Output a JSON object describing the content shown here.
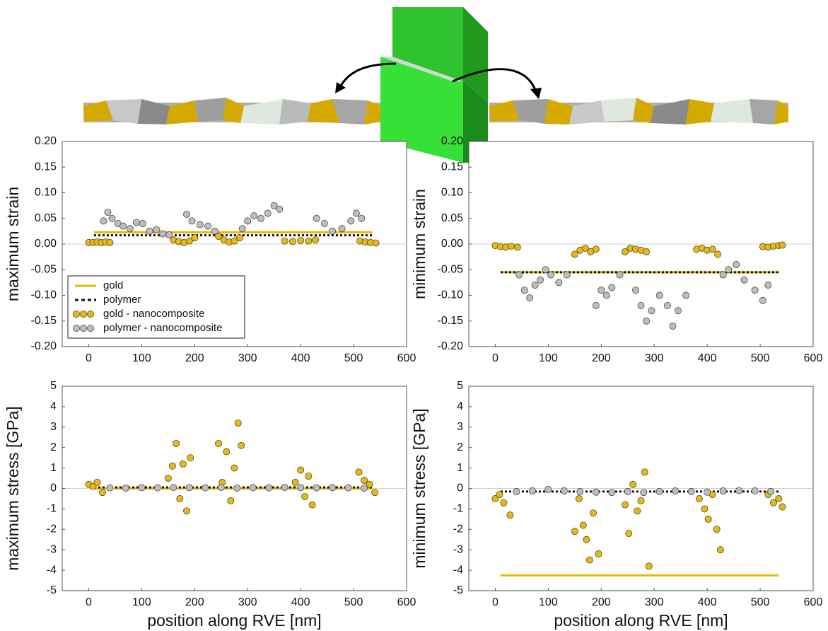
{
  "chart_data": [
    {
      "type": "scatter",
      "ylabel": "maximum strain",
      "xlim": [
        -50,
        600
      ],
      "xticks": [
        0,
        100,
        200,
        300,
        400,
        500,
        600
      ],
      "ylim": [
        -0.2,
        0.2
      ],
      "yticks": [
        {
          "value": -0.2,
          "label": "-0.20"
        },
        {
          "value": -0.15,
          "label": "-0.15"
        },
        {
          "value": -0.1,
          "label": "-0.10"
        },
        {
          "value": -0.05,
          "label": "-0.05"
        },
        {
          "value": 0,
          "label": "0.00"
        },
        {
          "value": 0.05,
          "label": "0.05"
        },
        {
          "value": 0.1,
          "label": "0.10"
        },
        {
          "value": 0.15,
          "label": "0.15"
        },
        {
          "value": 0.2,
          "label": "0.20"
        }
      ],
      "zero_line": true,
      "legend": "lower left",
      "series": [
        {
          "name": "gold",
          "style": "solid",
          "color": "#e6b800",
          "x": [
            10,
            535
          ],
          "values": [
            0.023,
            0.023
          ]
        },
        {
          "name": "polymer",
          "style": "dashed",
          "color": "#111111",
          "x": [
            10,
            535
          ],
          "values": [
            0.017,
            0.017
          ]
        },
        {
          "name": "gold - nanocomposite",
          "style": "markers",
          "color": "#e8b90f",
          "x": [
            0,
            8,
            16,
            24,
            32,
            40,
            160,
            170,
            180,
            190,
            200,
            245,
            255,
            265,
            275,
            285,
            370,
            385,
            400,
            415,
            428,
            512,
            522,
            532,
            542
          ],
          "values": [
            0.003,
            0.003,
            0.004,
            0.003,
            0.004,
            0.003,
            0.008,
            0.005,
            0.003,
            0.006,
            0.012,
            0.015,
            0.008,
            0.004,
            0.006,
            0.012,
            0.006,
            0.005,
            0.007,
            0.006,
            0.008,
            0.006,
            0.004,
            0.003,
            0.002
          ]
        },
        {
          "name": "polymer - nanocomposite",
          "style": "markers",
          "color": "#bdbdbd",
          "x": [
            28,
            36,
            44,
            55,
            65,
            78,
            90,
            102,
            115,
            128,
            140,
            152,
            185,
            195,
            210,
            225,
            238,
            290,
            300,
            312,
            325,
            338,
            350,
            360,
            430,
            445,
            460,
            478,
            495,
            505,
            515
          ],
          "values": [
            0.045,
            0.062,
            0.05,
            0.04,
            0.035,
            0.03,
            0.042,
            0.04,
            0.025,
            0.028,
            0.02,
            0.018,
            0.058,
            0.045,
            0.038,
            0.035,
            0.025,
            0.03,
            0.045,
            0.055,
            0.05,
            0.06,
            0.075,
            0.068,
            0.05,
            0.04,
            0.025,
            0.03,
            0.045,
            0.06,
            0.05
          ]
        }
      ]
    },
    {
      "type": "scatter",
      "ylabel": "minimum strain",
      "xlim": [
        -50,
        600
      ],
      "xticks": [
        0,
        100,
        200,
        300,
        400,
        500,
        600
      ],
      "ylim": [
        -0.2,
        0.2
      ],
      "yticks": [
        {
          "value": -0.2,
          "label": "-0.20"
        },
        {
          "value": -0.15,
          "label": "-0.15"
        },
        {
          "value": -0.1,
          "label": "-0.10"
        },
        {
          "value": -0.05,
          "label": "-0.05"
        },
        {
          "value": 0,
          "label": "0.00"
        },
        {
          "value": 0.05,
          "label": "0.05"
        },
        {
          "value": 0.1,
          "label": "0.10"
        },
        {
          "value": 0.15,
          "label": "0.15"
        },
        {
          "value": 0.2,
          "label": "0.20"
        }
      ],
      "zero_line": true,
      "series": [
        {
          "style": "solid",
          "color": "#e6b800",
          "x": [
            10,
            535
          ],
          "values": [
            -0.055,
            -0.055
          ]
        },
        {
          "style": "dashed",
          "color": "#111111",
          "x": [
            10,
            535
          ],
          "values": [
            -0.055,
            -0.055
          ]
        },
        {
          "style": "markers",
          "color": "#e8b90f",
          "x": [
            0,
            10,
            20,
            30,
            42,
            150,
            160,
            170,
            180,
            190,
            245,
            255,
            265,
            275,
            285,
            380,
            390,
            400,
            410,
            420,
            505,
            515,
            525,
            535,
            542
          ],
          "values": [
            -0.003,
            -0.005,
            -0.006,
            -0.004,
            -0.006,
            -0.02,
            -0.012,
            -0.008,
            -0.015,
            -0.01,
            -0.015,
            -0.008,
            -0.01,
            -0.012,
            -0.015,
            -0.01,
            -0.008,
            -0.012,
            -0.01,
            -0.02,
            -0.005,
            -0.006,
            -0.004,
            -0.003,
            -0.002
          ]
        },
        {
          "style": "markers",
          "color": "#bdbdbd",
          "x": [
            45,
            55,
            65,
            75,
            85,
            95,
            105,
            120,
            135,
            190,
            200,
            210,
            220,
            235,
            265,
            275,
            285,
            295,
            310,
            325,
            335,
            345,
            360,
            430,
            440,
            455,
            470,
            490,
            505,
            515
          ],
          "values": [
            -0.06,
            -0.09,
            -0.105,
            -0.08,
            -0.07,
            -0.05,
            -0.06,
            -0.075,
            -0.06,
            -0.12,
            -0.09,
            -0.1,
            -0.085,
            -0.06,
            -0.09,
            -0.12,
            -0.15,
            -0.13,
            -0.1,
            -0.12,
            -0.16,
            -0.13,
            -0.1,
            -0.06,
            -0.05,
            -0.04,
            -0.07,
            -0.09,
            -0.11,
            -0.08
          ]
        }
      ]
    },
    {
      "type": "scatter",
      "ylabel": "maximum stress [GPa]",
      "xlabel": "position along RVE [nm]",
      "xlim": [
        -50,
        600
      ],
      "xticks": [
        0,
        100,
        200,
        300,
        400,
        500,
        600
      ],
      "ylim": [
        -5,
        5
      ],
      "yticks": [
        -5,
        -4,
        -3,
        -2,
        -1,
        0,
        1,
        2,
        3,
        4,
        5
      ],
      "zero_line": true,
      "series": [
        {
          "style": "solid",
          "color": "#e6b800",
          "x": [
            10,
            535
          ],
          "values": [
            0,
            0
          ]
        },
        {
          "style": "dashed",
          "color": "#111111",
          "x": [
            10,
            535
          ],
          "values": [
            0.05,
            0.05
          ]
        },
        {
          "style": "markers",
          "color": "#e8b90f",
          "x": [
            0,
            8,
            16,
            26,
            150,
            158,
            165,
            172,
            178,
            185,
            192,
            245,
            252,
            260,
            268,
            275,
            282,
            288,
            390,
            400,
            408,
            415,
            422,
            510,
            520,
            530,
            540
          ],
          "values": [
            0.2,
            0.1,
            0.3,
            -0.2,
            0.5,
            1.1,
            2.2,
            -0.5,
            1.2,
            -1.1,
            1.5,
            2.2,
            0.3,
            1.8,
            -0.6,
            1.0,
            3.2,
            2.1,
            0.3,
            0.9,
            -0.4,
            0.6,
            -0.8,
            0.8,
            0.4,
            0.2,
            -0.2
          ]
        },
        {
          "style": "markers",
          "color": "#bdbdbd",
          "x": [
            40,
            70,
            100,
            130,
            160,
            190,
            220,
            250,
            280,
            310,
            340,
            370,
            400,
            430,
            460,
            490,
            520
          ],
          "values": [
            0.03,
            0.02,
            0.04,
            0.03,
            0.05,
            0.04,
            0.03,
            0.05,
            0.02,
            0.04,
            0.03,
            0.05,
            0.04,
            0.03,
            0.04,
            0.03,
            0.02
          ]
        }
      ]
    },
    {
      "type": "scatter",
      "ylabel": "minimum stress [GPa]",
      "xlabel": "position along RVE [nm]",
      "xlim": [
        -50,
        600
      ],
      "xticks": [
        0,
        100,
        200,
        300,
        400,
        500,
        600
      ],
      "ylim": [
        -5,
        5
      ],
      "yticks": [
        -5,
        -4,
        -3,
        -2,
        -1,
        0,
        1,
        2,
        3,
        4,
        5
      ],
      "zero_line": true,
      "series": [
        {
          "style": "solid",
          "color": "#e6b800",
          "x": [
            10,
            535
          ],
          "values": [
            -4.25,
            -4.25
          ]
        },
        {
          "style": "dashed",
          "color": "#111111",
          "x": [
            10,
            535
          ],
          "values": [
            -0.15,
            -0.15
          ]
        },
        {
          "style": "markers",
          "color": "#e8b90f",
          "x": [
            0,
            8,
            16,
            28,
            150,
            158,
            166,
            172,
            178,
            185,
            195,
            245,
            252,
            260,
            268,
            275,
            282,
            290,
            385,
            395,
            402,
            410,
            418,
            425,
            515,
            525,
            535,
            542
          ],
          "values": [
            -0.5,
            -0.3,
            -0.7,
            -1.3,
            -2.1,
            -0.5,
            -1.8,
            -2.5,
            -3.5,
            -1.2,
            -3.2,
            -0.8,
            -2.2,
            0.2,
            -1.1,
            -0.6,
            0.8,
            -3.8,
            -0.5,
            -1.0,
            -1.5,
            -0.3,
            -2.0,
            -3.0,
            -0.3,
            -0.7,
            -0.5,
            -0.9
          ]
        },
        {
          "style": "markers",
          "color": "#bdbdbd",
          "x": [
            40,
            70,
            100,
            130,
            160,
            190,
            220,
            250,
            280,
            310,
            340,
            370,
            400,
            430,
            460,
            490,
            520
          ],
          "values": [
            -0.15,
            -0.12,
            -0.05,
            -0.12,
            -0.15,
            -0.18,
            -0.2,
            -0.15,
            -0.2,
            -0.15,
            -0.12,
            -0.15,
            -0.18,
            -0.12,
            -0.1,
            -0.12,
            -0.15
          ]
        }
      ]
    }
  ]
}
